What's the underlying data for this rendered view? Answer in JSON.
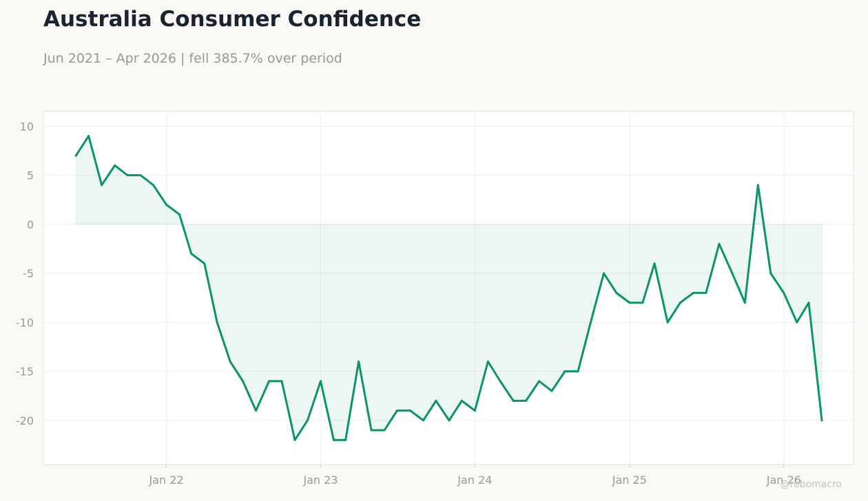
{
  "header": {
    "title": "Australia Consumer Confidence",
    "subtitle": "Jun 2021 – Apr 2026 | fell 385.7% over period"
  },
  "watermark": "@robomacro",
  "colors": {
    "line": "#0a9467",
    "fill": "#0a9467",
    "background": "#f9f8f5",
    "plot_background": "#ffffff",
    "grid": "#eeeeee",
    "tick_text": "#999999"
  },
  "chart_data": {
    "type": "area",
    "title": "Australia Consumer Confidence",
    "subtitle": "Jun 2021 – Apr 2026 | fell 385.7% over period",
    "xlabel": "",
    "ylabel": "",
    "grid": true,
    "ylim": [
      -24.5,
      11.5
    ],
    "xlim": [
      "2021-03-16",
      "2026-06-15"
    ],
    "y_ticks": [
      10,
      5,
      0,
      -5,
      -10,
      -15,
      -20
    ],
    "x_ticks": [
      {
        "date": "2022-01-01",
        "label": "Jan 22"
      },
      {
        "date": "2023-01-01",
        "label": "Jan 23"
      },
      {
        "date": "2024-01-01",
        "label": "Jan 24"
      },
      {
        "date": "2025-01-01",
        "label": "Jan 25"
      },
      {
        "date": "2026-01-01",
        "label": "Jan 26"
      }
    ],
    "series": [
      {
        "points": [
          [
            "2021-06",
            7
          ],
          [
            "2021-07",
            9
          ],
          [
            "2021-08",
            4
          ],
          [
            "2021-09",
            6
          ],
          [
            "2021-10",
            5
          ],
          [
            "2021-11",
            5
          ],
          [
            "2021-12",
            4
          ],
          [
            "2022-01",
            2
          ],
          [
            "2022-02",
            1
          ],
          [
            "2022-03",
            -3
          ],
          [
            "2022-04",
            -4
          ],
          [
            "2022-05",
            -10
          ],
          [
            "2022-06",
            -14
          ],
          [
            "2022-07",
            -16
          ],
          [
            "2022-08",
            -19
          ],
          [
            "2022-09",
            -16
          ],
          [
            "2022-10",
            -16
          ],
          [
            "2022-11",
            -22
          ],
          [
            "2022-12",
            -20
          ],
          [
            "2023-01",
            -16
          ],
          [
            "2023-02",
            -22
          ],
          [
            "2023-03",
            -22
          ],
          [
            "2023-04",
            -14
          ],
          [
            "2023-05",
            -21
          ],
          [
            "2023-06",
            -21
          ],
          [
            "2023-07",
            -19
          ],
          [
            "2023-08",
            -19
          ],
          [
            "2023-09",
            -20
          ],
          [
            "2023-10",
            -18
          ],
          [
            "2023-11",
            -20
          ],
          [
            "2023-12",
            -18
          ],
          [
            "2024-01",
            -19
          ],
          [
            "2024-02",
            -14
          ],
          [
            "2024-03",
            -16
          ],
          [
            "2024-04",
            -18
          ],
          [
            "2024-05",
            -18
          ],
          [
            "2024-06",
            -16
          ],
          [
            "2024-07",
            -17
          ],
          [
            "2024-08",
            -15
          ],
          [
            "2024-09",
            -15
          ],
          [
            "2024-10",
            -10
          ],
          [
            "2024-11",
            -5
          ],
          [
            "2024-12",
            -7
          ],
          [
            "2025-01",
            -8
          ],
          [
            "2025-02",
            -8
          ],
          [
            "2025-03",
            -4
          ],
          [
            "2025-04",
            -10
          ],
          [
            "2025-05",
            -8
          ],
          [
            "2025-06",
            -7
          ],
          [
            "2025-07",
            -7
          ],
          [
            "2025-08",
            -2
          ],
          [
            "2025-09",
            -5
          ],
          [
            "2025-10",
            -8
          ],
          [
            "2025-11",
            4
          ],
          [
            "2025-12",
            -5
          ],
          [
            "2026-01",
            -7
          ],
          [
            "2026-02",
            -10
          ],
          [
            "2026-03",
            -8
          ],
          [
            "2026-04",
            -20
          ]
        ]
      }
    ]
  }
}
